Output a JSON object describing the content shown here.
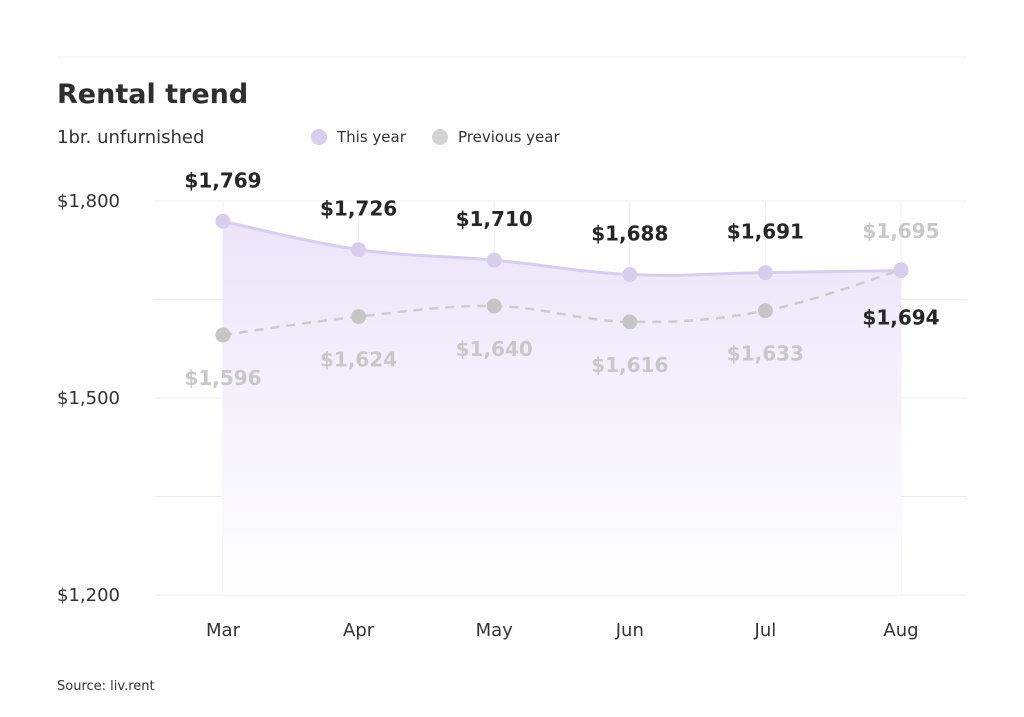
{
  "chart_data": {
    "type": "line",
    "title": "Rental trend",
    "subtitle": "1br. unfurnished",
    "categories": [
      "Mar",
      "Apr",
      "May",
      "Jun",
      "Jul",
      "Aug"
    ],
    "series": [
      {
        "name": "This year",
        "values": [
          1769,
          1726,
          1710,
          1688,
          1691,
          1694
        ],
        "labels": [
          "$1,769",
          "$1,726",
          "$1,710",
          "$1,688",
          "$1,691",
          "$1,694"
        ],
        "color": "#d9cdee",
        "fill": "#efeafb"
      },
      {
        "name": "Previous year",
        "values": [
          1596,
          1624,
          1640,
          1616,
          1633,
          1695
        ],
        "labels": [
          "$1,596",
          "$1,624",
          "$1,640",
          "$1,616",
          "$1,633",
          "$1,695"
        ],
        "color": "#cccccc",
        "dashed": true
      }
    ],
    "y_ticks": [
      {
        "value": 1800,
        "label": "$1,800"
      },
      {
        "value": 1500,
        "label": "$1,500"
      },
      {
        "value": 1200,
        "label": "$1,200"
      }
    ],
    "ylim": [
      1200,
      1800
    ],
    "grid": true,
    "legend_position": "top",
    "source": "Source: liv.rent"
  }
}
